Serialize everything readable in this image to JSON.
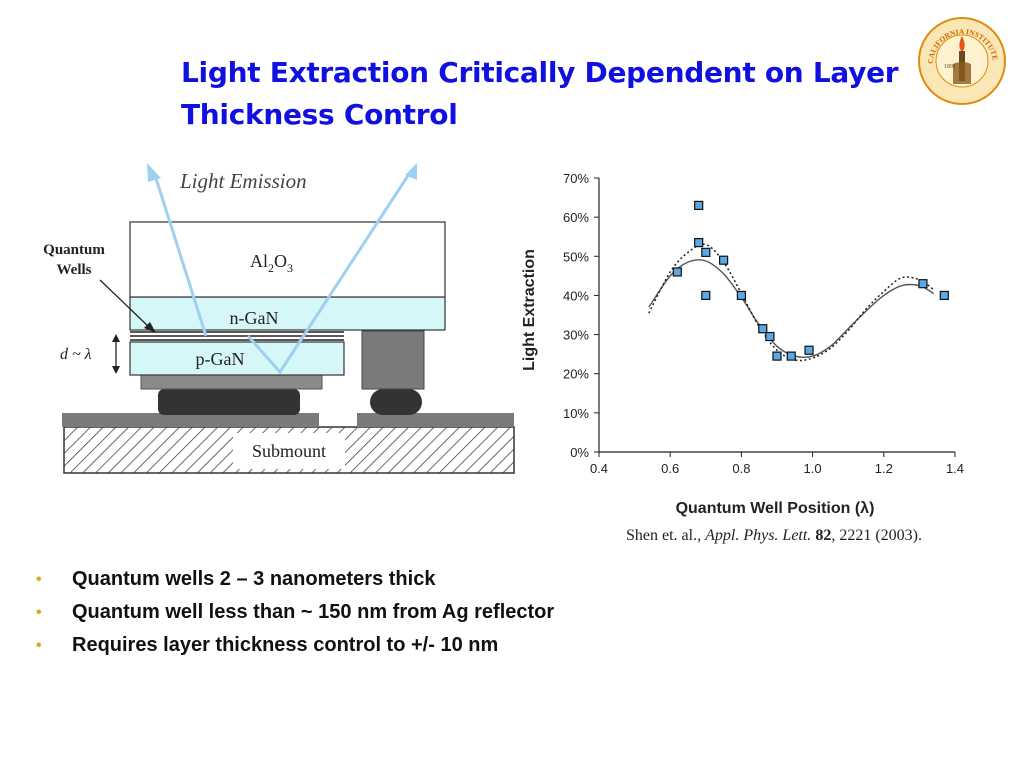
{
  "slide": {
    "title_line1": "Light Extraction Critically Dependent on Layer",
    "title_line2": "Thickness Control",
    "seal_text": "CALIFORNIA INSTITUTE OF TECHNOLOGY",
    "seal_year": "1891"
  },
  "diagram": {
    "light_emission": "Light Emission",
    "quantum_wells_line1": "Quantum",
    "quantum_wells_line2": "Wells",
    "al2o3_main": "Al",
    "al2o3_sub1": "2",
    "al2o3_o": "O",
    "al2o3_sub2": "3",
    "ngan": "n-GaN",
    "pgan": "p-GaN",
    "d_label": "d ~ λ",
    "submount": "Submount"
  },
  "citation": {
    "authors": "Shen et. al., ",
    "journal": "Appl. Phys. Lett.",
    "volume": "82",
    "pages": ", 2221 (2003)."
  },
  "bullets": [
    "Quantum wells 2 – 3 nanometers thick",
    "Quantum well less than ~ 150 nm from Ag reflector",
    "Requires layer thickness control to +/- 10 nm"
  ],
  "bullet_symbol": "•",
  "colors": {
    "title": "#1010e0",
    "bullet": "#e6a31a",
    "marker": "#5aa9e6",
    "arrow": "#9fd0f0",
    "layer": "#d6f7f7"
  },
  "chart_data": {
    "type": "scatter",
    "xlabel": "Quantum Well Position (λ)",
    "ylabel": "Light Extraction",
    "xlim": [
      0.4,
      1.4
    ],
    "ylim": [
      0,
      70
    ],
    "x_ticks": [
      "0.4",
      "0.6",
      "0.8",
      "1.0",
      "1.2",
      "1.4"
    ],
    "y_ticks": [
      "0%",
      "10%",
      "20%",
      "30%",
      "40%",
      "50%",
      "60%",
      "70%"
    ],
    "points": {
      "x": [
        0.62,
        0.68,
        0.68,
        0.7,
        0.7,
        0.75,
        0.8,
        0.86,
        0.88,
        0.9,
        0.94,
        0.99,
        1.31,
        1.37
      ],
      "y": [
        46,
        63,
        53.5,
        51,
        40,
        49,
        40,
        31.5,
        29.5,
        24.5,
        24.5,
        26,
        43,
        40
      ]
    },
    "solid_curve": {
      "x": [
        0.54,
        0.6,
        0.65,
        0.7,
        0.75,
        0.8,
        0.85,
        0.9,
        0.95,
        1.0,
        1.05,
        1.1,
        1.15,
        1.2,
        1.25,
        1.3,
        1.34
      ],
      "y": [
        37,
        45,
        48.5,
        48.8,
        45.5,
        39.5,
        32.5,
        27,
        24.5,
        24.5,
        27,
        31.5,
        36,
        40,
        42.5,
        42.5,
        40.5
      ]
    },
    "dotted_curve": {
      "x": [
        0.54,
        0.6,
        0.65,
        0.7,
        0.75,
        0.8,
        0.85,
        0.9,
        0.95,
        1.0,
        1.05,
        1.1,
        1.15,
        1.2,
        1.25,
        1.3,
        1.34
      ],
      "y": [
        35.5,
        46,
        51,
        53,
        48.5,
        40.5,
        32,
        26,
        23.5,
        24,
        26.5,
        31,
        36.5,
        41,
        44.5,
        44,
        41.5
      ]
    },
    "grid": false
  }
}
